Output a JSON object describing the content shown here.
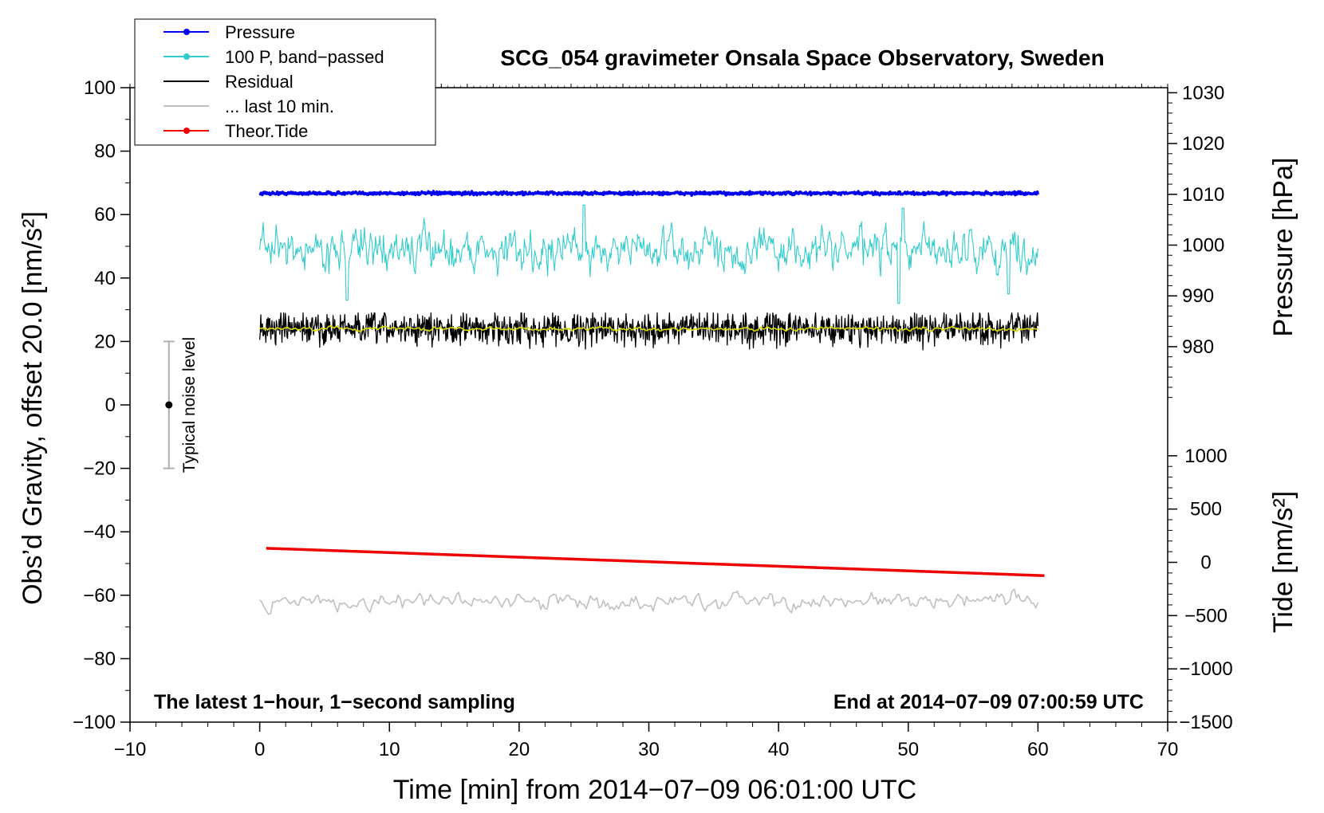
{
  "chart_data": {
    "type": "line",
    "title": "SCG_054 gravimeter Onsala Space Observatory, Sweden",
    "xlabel": "Time [min] from 2014−07−09 06:01:00 UTC",
    "ylabel_left": "Obs’d Gravity, offset 20.0 [nm/s²]",
    "ylabel_pressure": "Pressure [hPa]",
    "ylabel_tide": "Tide [nm/s²]",
    "xlim": [
      -10,
      70
    ],
    "ylim_left": [
      -100,
      100
    ],
    "ylim_pressure": [
      969,
      1031
    ],
    "ylim_tide": [
      -1500,
      1500
    ],
    "x_ticks": [
      {
        "value": -10,
        "label": "−10"
      },
      {
        "value": 0,
        "label": "0"
      },
      {
        "value": 10,
        "label": "10"
      },
      {
        "value": 20,
        "label": "20"
      },
      {
        "value": 30,
        "label": "30"
      },
      {
        "value": 40,
        "label": "40"
      },
      {
        "value": 50,
        "label": "50"
      },
      {
        "value": 60,
        "label": "60"
      },
      {
        "value": 70,
        "label": "70"
      }
    ],
    "y_ticks_left": [
      {
        "value": 100,
        "label": "100"
      },
      {
        "value": 80,
        "label": "80"
      },
      {
        "value": 60,
        "label": "60"
      },
      {
        "value": 40,
        "label": "40"
      },
      {
        "value": 20,
        "label": "20"
      },
      {
        "value": 0,
        "label": "0"
      },
      {
        "value": -20,
        "label": "−20"
      },
      {
        "value": -40,
        "label": "−40"
      },
      {
        "value": -60,
        "label": "−60"
      },
      {
        "value": -80,
        "label": "−80"
      },
      {
        "value": -100,
        "label": "−100"
      }
    ],
    "y_ticks_pressure": [
      {
        "value": 1030,
        "label": "1030"
      },
      {
        "value": 1020,
        "label": "1020"
      },
      {
        "value": 1010,
        "label": "1010"
      },
      {
        "value": 1000,
        "label": "1000"
      },
      {
        "value": 990,
        "label": "990"
      },
      {
        "value": 980,
        "label": "980"
      }
    ],
    "y_ticks_tide": [
      {
        "value": 1000,
        "label": "1000"
      },
      {
        "value": 500,
        "label": "500"
      },
      {
        "value": 0,
        "label": "0"
      },
      {
        "value": -500,
        "label": "−500"
      },
      {
        "value": -1000,
        "label": "−1000"
      },
      {
        "value": -1500,
        "label": "−1500"
      }
    ],
    "legend": {
      "position": "top-left",
      "entries": [
        {
          "label": "Pressure",
          "color": "#0000ee",
          "marker": true
        },
        {
          "label": "100 P, band−passed",
          "color": "#33cccc",
          "marker": true
        },
        {
          "label": "Residual",
          "color": "#000000",
          "marker": false
        },
        {
          "label": "... last 10 min.",
          "color": "#c0c0c0",
          "marker": false
        },
        {
          "label": "Theor.Tide",
          "color": "#ee0000",
          "marker": true
        }
      ]
    },
    "series": [
      {
        "name": "Pressure",
        "color": "#0000ee",
        "x_range": [
          0,
          60
        ],
        "mean": 1010.2,
        "noise": 0.15,
        "spikes": [
          {
            "x": 25.0,
            "value": 1010.5
          },
          {
            "x": 49.3,
            "value": 1010.5
          }
        ]
      },
      {
        "name": "100 P, band-passed",
        "color": "#33cccc",
        "x_range": [
          0,
          60
        ],
        "mean": 49,
        "noise": 6,
        "spikes": [
          {
            "x": 6.7,
            "value": 33
          },
          {
            "x": 25.0,
            "value": 63
          },
          {
            "x": 49.3,
            "value": 32
          },
          {
            "x": 49.6,
            "value": 62
          },
          {
            "x": 57.7,
            "value": 35
          }
        ]
      },
      {
        "name": "Residual",
        "color": "#000000",
        "x_range": [
          0,
          60
        ],
        "mean": 24,
        "noise": 2.5,
        "min": 17,
        "max": 29
      },
      {
        "name": "Residual smoothed",
        "color": "#dddd00",
        "x_range": [
          0,
          60
        ],
        "mean": 24,
        "noise": 0.6
      },
      {
        "name": "... last 10 min.",
        "color": "#c0c0c0",
        "x_range": [
          0,
          60
        ],
        "mean": -62,
        "noise": 2.5,
        "min": -67,
        "max": -57
      },
      {
        "name": "Theor.Tide",
        "color": "#ee0000",
        "axis": "tide",
        "x": [
          0.5,
          60.5
        ],
        "values": [
          132,
          -125
        ]
      }
    ],
    "noise_bar": {
      "label": "Typical noise level",
      "x": -7,
      "center": 0,
      "low": -20,
      "high": 20
    },
    "annotations": {
      "bottom_left": "The latest 1−hour, 1−second sampling",
      "bottom_right": "End at 2014−07−09 07:00:59 UTC"
    }
  }
}
